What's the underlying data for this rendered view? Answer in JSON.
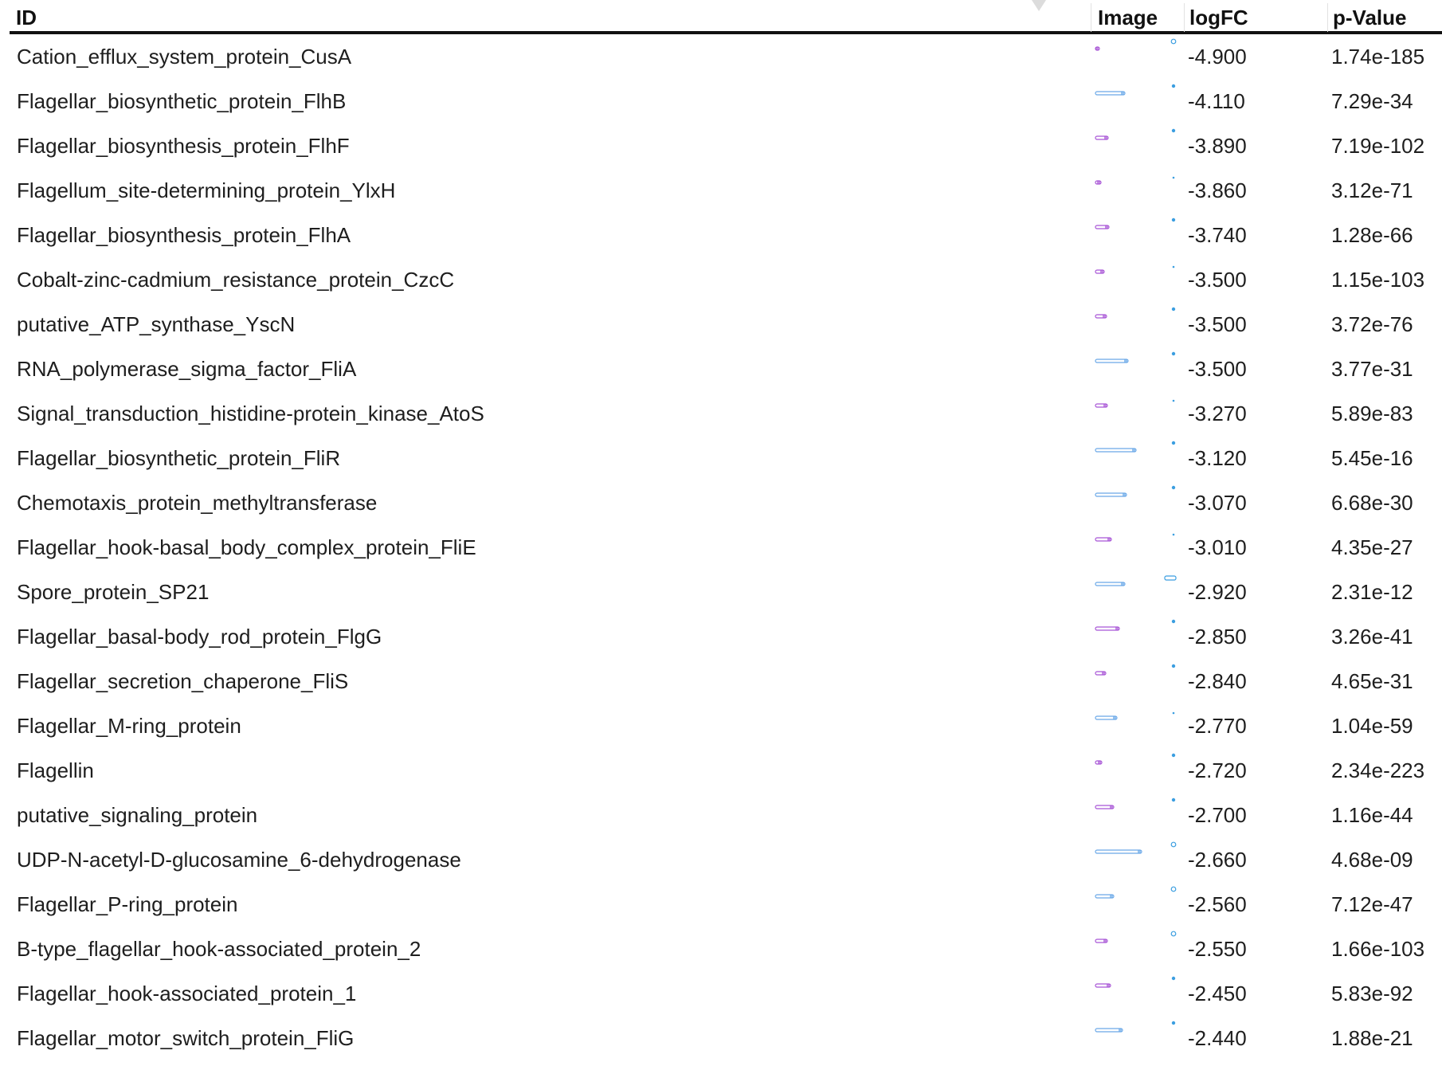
{
  "table": {
    "columns": [
      {
        "key": "id",
        "label": "ID"
      },
      {
        "key": "image",
        "label": "Image"
      },
      {
        "key": "logfc",
        "label": "logFC"
      },
      {
        "key": "pvalue",
        "label": "p-Value"
      }
    ],
    "rows": [
      {
        "id": "Cation_efflux_system_protein_CusA",
        "logfc": "-4.900",
        "pvalue": "1.74e-185",
        "glyph": {
          "bar": 0.07,
          "color": "#a855d6",
          "dot": "#3b9ee0",
          "dot_style": "ring"
        }
      },
      {
        "id": "Flagellar_biosynthetic_protein_FlhB",
        "logfc": "-4.110",
        "pvalue": "7.29e-34",
        "glyph": {
          "bar": 0.47,
          "color": "#6aa8e8",
          "dot": "#3b9ee0",
          "dot_style": "fill"
        }
      },
      {
        "id": "Flagellar_biosynthesis_protein_FlhF",
        "logfc": "-3.890",
        "pvalue": "7.19e-102",
        "glyph": {
          "bar": 0.21,
          "color": "#a855d6",
          "dot": "#3b9ee0",
          "dot_style": "fill"
        }
      },
      {
        "id": "Flagellum_site-determining_protein_YlxH",
        "logfc": "-3.860",
        "pvalue": "3.12e-71",
        "glyph": {
          "bar": 0.09,
          "color": "#a855d6",
          "dot": "#3b9ee0",
          "dot_style": "small"
        }
      },
      {
        "id": "Flagellar_biosynthesis_protein_FlhA",
        "logfc": "-3.740",
        "pvalue": "1.28e-66",
        "glyph": {
          "bar": 0.22,
          "color": "#a855d6",
          "dot": "#3b9ee0",
          "dot_style": "fill"
        }
      },
      {
        "id": "Cobalt-zinc-cadmium_resistance_protein_CzcC",
        "logfc": "-3.500",
        "pvalue": "1.15e-103",
        "glyph": {
          "bar": 0.14,
          "color": "#a855d6",
          "dot": "#3b9ee0",
          "dot_style": "small"
        }
      },
      {
        "id": "putative_ATP_synthase_YscN",
        "logfc": "-3.500",
        "pvalue": "3.72e-76",
        "glyph": {
          "bar": 0.18,
          "color": "#a855d6",
          "dot": "#3b9ee0",
          "dot_style": "fill"
        }
      },
      {
        "id": "RNA_polymerase_sigma_factor_FliA",
        "logfc": "-3.500",
        "pvalue": "3.77e-31",
        "glyph": {
          "bar": 0.53,
          "color": "#6aa8e8",
          "dot": "#3b9ee0",
          "dot_style": "fill"
        }
      },
      {
        "id": "Signal_transduction_histidine-protein_kinase_AtoS",
        "logfc": "-3.270",
        "pvalue": "5.89e-83",
        "glyph": {
          "bar": 0.19,
          "color": "#a855d6",
          "dot": "#3b9ee0",
          "dot_style": "small"
        }
      },
      {
        "id": "Flagellar_biosynthetic_protein_FliR",
        "logfc": "-3.120",
        "pvalue": "5.45e-16",
        "glyph": {
          "bar": 0.66,
          "color": "#6aa8e8",
          "dot": "#3b9ee0",
          "dot_style": "fill"
        }
      },
      {
        "id": "Chemotaxis_protein_methyltransferase",
        "logfc": "-3.070",
        "pvalue": "6.68e-30",
        "glyph": {
          "bar": 0.5,
          "color": "#6aa8e8",
          "dot": "#3b9ee0",
          "dot_style": "fill"
        }
      },
      {
        "id": "Flagellar_hook-basal_body_complex_protein_FliE",
        "logfc": "-3.010",
        "pvalue": "4.35e-27",
        "glyph": {
          "bar": 0.25,
          "color": "#a855d6",
          "dot": "#3b9ee0",
          "dot_style": "small"
        }
      },
      {
        "id": "Spore_protein_SP21",
        "logfc": "-2.920",
        "pvalue": "2.31e-12",
        "glyph": {
          "bar": 0.47,
          "color": "#6aa8e8",
          "dot": "#3b9ee0",
          "dot_style": "wide"
        }
      },
      {
        "id": "Flagellar_basal-body_rod_protein_FlgG",
        "logfc": "-2.850",
        "pvalue": "3.26e-41",
        "glyph": {
          "bar": 0.38,
          "color": "#a855d6",
          "dot": "#3b9ee0",
          "dot_style": "fill"
        }
      },
      {
        "id": "Flagellar_secretion_chaperone_FliS",
        "logfc": "-2.840",
        "pvalue": "4.65e-31",
        "glyph": {
          "bar": 0.17,
          "color": "#a855d6",
          "dot": "#3b9ee0",
          "dot_style": "fill"
        }
      },
      {
        "id": "Flagellar_M-ring_protein",
        "logfc": "-2.770",
        "pvalue": "1.04e-59",
        "glyph": {
          "bar": 0.35,
          "color": "#6aa8e8",
          "dot": "#3b9ee0",
          "dot_style": "small"
        }
      },
      {
        "id": "Flagellin",
        "logfc": "-2.720",
        "pvalue": "2.34e-223",
        "glyph": {
          "bar": 0.1,
          "color": "#a855d6",
          "dot": "#3b9ee0",
          "dot_style": "fill"
        }
      },
      {
        "id": "putative_signaling_protein",
        "logfc": "-2.700",
        "pvalue": "1.16e-44",
        "glyph": {
          "bar": 0.29,
          "color": "#a855d6",
          "dot": "#3b9ee0",
          "dot_style": "fill"
        }
      },
      {
        "id": "UDP-N-acetyl-D-glucosamine_6-dehydrogenase",
        "logfc": "-2.660",
        "pvalue": "4.68e-09",
        "glyph": {
          "bar": 0.74,
          "color": "#6aa8e8",
          "dot": "#3b9ee0",
          "dot_style": "ring"
        }
      },
      {
        "id": "Flagellar_P-ring_protein",
        "logfc": "-2.560",
        "pvalue": "7.12e-47",
        "glyph": {
          "bar": 0.29,
          "color": "#6aa8e8",
          "dot": "#3b9ee0",
          "dot_style": "ring"
        }
      },
      {
        "id": "B-type_flagellar_hook-associated_protein_2",
        "logfc": "-2.550",
        "pvalue": "1.66e-103",
        "glyph": {
          "bar": 0.19,
          "color": "#a855d6",
          "dot": "#3b9ee0",
          "dot_style": "ring"
        }
      },
      {
        "id": "Flagellar_hook-associated_protein_1",
        "logfc": "-2.450",
        "pvalue": "5.83e-92",
        "glyph": {
          "bar": 0.24,
          "color": "#a855d6",
          "dot": "#3b9ee0",
          "dot_style": "fill"
        }
      },
      {
        "id": "Flagellar_motor_switch_protein_FliG",
        "logfc": "-2.440",
        "pvalue": "1.88e-21",
        "glyph": {
          "bar": 0.44,
          "color": "#6aa8e8",
          "dot": "#3b9ee0",
          "dot_style": "fill"
        }
      }
    ]
  }
}
